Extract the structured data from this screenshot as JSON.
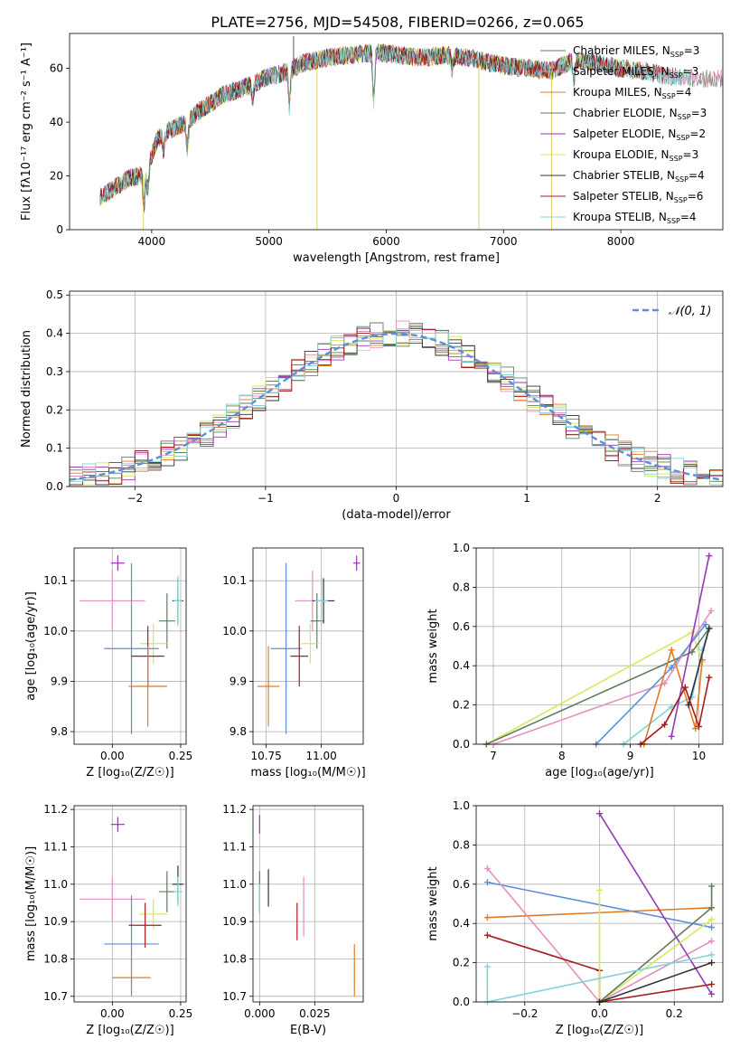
{
  "figure": {
    "title": "PLATE=2756, MJD=54508, FIBERID=0266, z=0.065"
  },
  "chart_data": [
    {
      "type": "line",
      "id": "spectrum",
      "xlabel": "wavelength [Angstrom, rest frame]",
      "ylabel": "Flux [fλ10⁻¹⁷ erg cm⁻² s⁻¹ A⁻¹]",
      "xlim": [
        3300,
        8870
      ],
      "ylim": [
        0,
        73
      ],
      "xticks": [
        4000,
        5000,
        6000,
        7000,
        8000
      ],
      "yticks": [
        0,
        20,
        40,
        60
      ],
      "grid": false,
      "legend_position": "top-right",
      "continuum": {
        "x": [
          3560,
          3700,
          3800,
          3900,
          3950,
          4050,
          4150,
          4300,
          4400,
          4600,
          4800,
          5000,
          5100,
          5300,
          5500,
          5700,
          5900,
          6100,
          6300,
          6500,
          6700,
          6900,
          7000,
          7200,
          7400,
          7600,
          7800,
          8000,
          8200,
          8400,
          8800
        ],
        "y": [
          12,
          16,
          19,
          20,
          21,
          34,
          37,
          40,
          44,
          50,
          53,
          57,
          58,
          62,
          64,
          65,
          66,
          65,
          64,
          65,
          64,
          62,
          61,
          60,
          59,
          63,
          62,
          60,
          59,
          57,
          56
        ]
      },
      "absorption_features": [
        {
          "x": 3934,
          "depth": 12
        },
        {
          "x": 3968,
          "depth": 8
        },
        {
          "x": 4101,
          "depth": 6
        },
        {
          "x": 4304,
          "depth": 10
        },
        {
          "x": 4861,
          "depth": 5
        },
        {
          "x": 5175,
          "depth": 14
        },
        {
          "x": 5893,
          "depth": 18
        },
        {
          "x": 6563,
          "depth": 5
        },
        {
          "x": 7600,
          "depth": 8
        }
      ],
      "outliers": [
        {
          "x": 3930,
          "y": 0
        },
        {
          "x": 5210,
          "y": 72
        },
        {
          "x": 5410,
          "y": 0
        },
        {
          "x": 6790,
          "y": 0
        },
        {
          "x": 7410,
          "y": 0
        }
      ],
      "series": [
        {
          "name": "Chabrier MILES, N",
          "sub": "SSP",
          "suffix": "=3",
          "color": "#607d60"
        },
        {
          "name": "Salpeter MILES, N",
          "sub": "SSP",
          "suffix": "=3",
          "color": "#e58fc0"
        },
        {
          "name": "Kroupa MILES, N",
          "sub": "SSP",
          "suffix": "=4",
          "color": "#e07b24"
        },
        {
          "name": "Chabrier ELODIE, N",
          "sub": "SSP",
          "suffix": "=3",
          "color": "#607d60"
        },
        {
          "name": "Salpeter ELODIE, N",
          "sub": "SSP",
          "suffix": "=2",
          "color": "#9a36b8"
        },
        {
          "name": "Kroupa ELODIE, N",
          "sub": "SSP",
          "suffix": "=3",
          "color": "#d6e85c"
        },
        {
          "name": "Chabrier STELIB, N",
          "sub": "SSP",
          "suffix": "=4",
          "color": "#333333"
        },
        {
          "name": "Salpeter STELIB, N",
          "sub": "SSP",
          "suffix": "=6",
          "color": "#a81c1c"
        },
        {
          "name": "Kroupa STELIB, N",
          "sub": "SSP",
          "suffix": "=4",
          "color": "#7fd3d8"
        }
      ]
    },
    {
      "type": "line",
      "id": "residuals",
      "xlabel": "(data-model)/error",
      "ylabel": "Normed distribution",
      "xlim": [
        -2.5,
        2.5
      ],
      "ylim": [
        0,
        0.51
      ],
      "xticks": [
        -2,
        -1,
        0,
        1,
        2
      ],
      "yticks": [
        0.0,
        0.1,
        0.2,
        0.3,
        0.4,
        0.5
      ],
      "grid": true,
      "legend_position": "top-right",
      "gaussian": {
        "name": "𝒩(0, 1)",
        "color": "#5b8fd8"
      },
      "bin_width": 0.1
    },
    {
      "type": "scatter",
      "id": "age-vs-Z",
      "xlabel": "Z [log₁₀(Z/Z☉)]",
      "ylabel": "age  [log₁₀(age/yr)]",
      "xlim": [
        -0.14,
        0.27
      ],
      "ylim": [
        9.775,
        10.165
      ],
      "xticks": [
        0.0,
        0.25
      ],
      "yticks": [
        9.8,
        9.9,
        10.0,
        10.1
      ],
      "grid": true,
      "points": [
        {
          "x": 0.02,
          "y": 10.135,
          "xerr": 0.025,
          "yerr": 0.015,
          "color": "#9a36b8"
        },
        {
          "x": 0.0,
          "y": 10.06,
          "xerr": 0.12,
          "yerr": 0.06,
          "color": "#e58fc0"
        },
        {
          "x": 0.2,
          "y": 10.02,
          "xerr": 0.03,
          "yerr": 0.055,
          "color": "#607d60"
        },
        {
          "x": 0.24,
          "y": 10.06,
          "xerr": 0.02,
          "yerr": 0.045,
          "color": "#333333"
        },
        {
          "x": 0.24,
          "y": 10.06,
          "xerr": 0.015,
          "yerr": 0.05,
          "color": "#7fd3d8"
        },
        {
          "x": 0.15,
          "y": 9.975,
          "xerr": 0.05,
          "yerr": 0.04,
          "color": "#d6e85c"
        },
        {
          "x": 0.07,
          "y": 9.965,
          "xerr": 0.1,
          "yerr": 0.17,
          "color": "#5b8fd8"
        },
        {
          "x": 0.13,
          "y": 9.95,
          "xerr": 0.06,
          "yerr": 0.06,
          "color": "#a81c1c"
        },
        {
          "x": 0.13,
          "y": 9.89,
          "xerr": 0.07,
          "yerr": 0.08,
          "color": "#e07b24"
        }
      ]
    },
    {
      "type": "scatter",
      "id": "age-vs-mass",
      "xlabel": "mass [log₁₀(M/M☉)]",
      "ylabel": "",
      "xlim": [
        10.69,
        11.19
      ],
      "ylim": [
        9.775,
        10.165
      ],
      "xticks": [
        10.75,
        11.0
      ],
      "yticks": [
        9.8,
        9.9,
        10.0,
        10.1
      ],
      "grid": true,
      "points": [
        {
          "x": 11.16,
          "y": 10.135,
          "xerr": 0.015,
          "yerr": 0.015,
          "color": "#9a36b8"
        },
        {
          "x": 10.96,
          "y": 10.06,
          "xerr": 0.08,
          "yerr": 0.06,
          "color": "#e58fc0"
        },
        {
          "x": 10.98,
          "y": 10.02,
          "xerr": 0.03,
          "yerr": 0.055,
          "color": "#607d60"
        },
        {
          "x": 11.01,
          "y": 10.06,
          "xerr": 0.05,
          "yerr": 0.045,
          "color": "#333333"
        },
        {
          "x": 11.0,
          "y": 10.06,
          "xerr": 0.03,
          "yerr": 0.05,
          "color": "#7fd3d8"
        },
        {
          "x": 10.95,
          "y": 9.975,
          "xerr": 0.04,
          "yerr": 0.04,
          "color": "#d6e85c"
        },
        {
          "x": 10.84,
          "y": 9.965,
          "xerr": 0.07,
          "yerr": 0.17,
          "color": "#5b8fd8"
        },
        {
          "x": 10.9,
          "y": 9.95,
          "xerr": 0.04,
          "yerr": 0.06,
          "color": "#a81c1c"
        },
        {
          "x": 10.76,
          "y": 9.89,
          "xerr": 0.05,
          "yerr": 0.08,
          "color": "#e07b24"
        }
      ]
    },
    {
      "type": "line",
      "id": "massweight-vs-age",
      "xlabel": "age  [log₁₀(age/yr)]",
      "ylabel": "mass weight",
      "xlim": [
        6.75,
        10.35
      ],
      "ylim": [
        0,
        1.0
      ],
      "xticks": [
        7,
        8,
        9,
        10
      ],
      "yticks": [
        0.0,
        0.2,
        0.4,
        0.6,
        0.8,
        1.0
      ],
      "grid": true,
      "series": [
        {
          "color": "#d6e85c",
          "points": [
            [
              6.9,
              0.0
            ],
            [
              9.9,
              0.57
            ],
            [
              10.05,
              0.42
            ]
          ]
        },
        {
          "color": "#607d60",
          "points": [
            [
              6.9,
              0.0
            ],
            [
              9.9,
              0.47
            ],
            [
              10.15,
              0.59
            ]
          ]
        },
        {
          "color": "#e58fc0",
          "points": [
            [
              7.0,
              0.0
            ],
            [
              9.5,
              0.31
            ],
            [
              10.18,
              0.68
            ]
          ]
        },
        {
          "color": "#5b8fd8",
          "points": [
            [
              8.5,
              0.0
            ],
            [
              9.6,
              0.39
            ],
            [
              10.1,
              0.61
            ]
          ]
        },
        {
          "color": "#7fd3d8",
          "points": [
            [
              8.9,
              0.0
            ],
            [
              9.6,
              0.19
            ],
            [
              9.9,
              0.24
            ],
            [
              10.05,
              0.48
            ],
            [
              10.15,
              0.59
            ]
          ]
        },
        {
          "color": "#e07b24",
          "points": [
            [
              9.2,
              0.0
            ],
            [
              9.6,
              0.48
            ],
            [
              9.95,
              0.08
            ],
            [
              10.05,
              0.43
            ]
          ]
        },
        {
          "color": "#9a36b8",
          "points": [
            [
              9.6,
              0.04
            ],
            [
              10.15,
              0.96
            ]
          ]
        },
        {
          "color": "#a81c1c",
          "points": [
            [
              9.15,
              0.0
            ],
            [
              9.5,
              0.1
            ],
            [
              9.8,
              0.29
            ],
            [
              10.0,
              0.09
            ],
            [
              10.15,
              0.34
            ]
          ]
        },
        {
          "color": "#333333",
          "points": [
            [
              9.85,
              0.2
            ],
            [
              10.15,
              0.59
            ]
          ]
        }
      ]
    },
    {
      "type": "scatter",
      "id": "mass-vs-Z",
      "xlabel": "Z [log₁₀(Z/Z☉)]",
      "ylabel": "mass [log₁₀(M/M☉)]",
      "xlim": [
        -0.14,
        0.27
      ],
      "ylim": [
        10.685,
        11.21
      ],
      "xticks": [
        0.0,
        0.25
      ],
      "yticks": [
        10.7,
        10.8,
        10.9,
        11.0,
        11.1,
        11.2
      ],
      "grid": true,
      "points": [
        {
          "x": 0.02,
          "y": 11.16,
          "xerr": 0.025,
          "yerr": 0.02,
          "color": "#9a36b8"
        },
        {
          "x": 0.0,
          "y": 10.96,
          "xerr": 0.12,
          "yerr": 0.06,
          "color": "#e58fc0"
        },
        {
          "x": 0.2,
          "y": 10.98,
          "xerr": 0.03,
          "yerr": 0.055,
          "color": "#607d60"
        },
        {
          "x": 0.24,
          "y": 11.0,
          "xerr": 0.02,
          "yerr": 0.05,
          "color": "#333333"
        },
        {
          "x": 0.24,
          "y": 10.98,
          "xerr": 0.015,
          "yerr": 0.04,
          "color": "#7fd3d8"
        },
        {
          "x": 0.15,
          "y": 10.92,
          "xerr": 0.05,
          "yerr": 0.04,
          "color": "#d6e85c"
        },
        {
          "x": 0.07,
          "y": 10.84,
          "xerr": 0.1,
          "yerr": 0.13,
          "color": "#5b8fd8"
        },
        {
          "x": 0.12,
          "y": 10.89,
          "xerr": 0.06,
          "yerr": 0.06,
          "color": "#a81c1c"
        },
        {
          "x": 0.07,
          "y": 10.75,
          "xerr": 0.07,
          "yerr": 0.05,
          "color": "#e07b24"
        }
      ]
    },
    {
      "type": "scatter",
      "id": "mass-vs-ebv",
      "xlabel": "E(B-V)",
      "ylabel": "",
      "xlim": [
        -0.003,
        0.047
      ],
      "ylim": [
        10.685,
        11.21
      ],
      "xticks": [
        0.0,
        0.025
      ],
      "yticks": [
        10.7,
        10.8,
        10.9,
        11.0,
        11.1,
        11.2
      ],
      "grid": true,
      "points": [
        {
          "x": 0.0,
          "y": 11.16,
          "xerr": 0.0,
          "yerr": 0.025,
          "color": "#9a36b8"
        },
        {
          "x": 0.0,
          "y": 10.98,
          "xerr": 0.0,
          "yerr": 0.055,
          "color": "#607d60"
        },
        {
          "x": 0.0,
          "y": 10.96,
          "xerr": 0.0,
          "yerr": 0.04,
          "color": "#7fd3d8"
        },
        {
          "x": 0.004,
          "y": 10.99,
          "xerr": 0.0,
          "yerr": 0.05,
          "color": "#333333"
        },
        {
          "x": 0.02,
          "y": 10.94,
          "xerr": 0.0,
          "yerr": 0.08,
          "color": "#e58fc0"
        },
        {
          "x": 0.017,
          "y": 10.9,
          "xerr": 0.0,
          "yerr": 0.05,
          "color": "#a81c1c"
        },
        {
          "x": 0.043,
          "y": 10.77,
          "xerr": 0.0,
          "yerr": 0.07,
          "color": "#e07b24"
        }
      ]
    },
    {
      "type": "line",
      "id": "massweight-vs-Z",
      "xlabel": "Z [log₁₀(Z/Z☉)]",
      "ylabel": "mass weight",
      "xlim": [
        -0.33,
        0.33
      ],
      "ylim": [
        0,
        1.0
      ],
      "xticks": [
        -0.2,
        0.0,
        0.2
      ],
      "yticks": [
        0.0,
        0.2,
        0.4,
        0.6,
        0.8,
        1.0
      ],
      "grid": true,
      "series": [
        {
          "color": "#5b8fd8",
          "points": [
            [
              -0.3,
              0.61
            ],
            [
              0.3,
              0.38
            ]
          ]
        },
        {
          "color": "#e07b24",
          "points": [
            [
              -0.3,
              0.43
            ],
            [
              0.3,
              0.48
            ]
          ]
        },
        {
          "color": "#e58fc0",
          "points": [
            [
              -0.3,
              0.68
            ],
            [
              0.0,
              0.0
            ],
            [
              0.3,
              0.31
            ]
          ]
        },
        {
          "color": "#9a36b8",
          "points": [
            [
              0.0,
              0.96
            ],
            [
              0.3,
              0.04
            ]
          ]
        },
        {
          "color": "#a81c1c",
          "points": [
            [
              -0.3,
              0.34
            ],
            [
              0.0,
              0.16
            ],
            [
              0.0,
              0.0
            ],
            [
              0.3,
              0.09
            ]
          ]
        },
        {
          "color": "#d6e85c",
          "points": [
            [
              0.0,
              0.57
            ],
            [
              0.0,
              0.0
            ],
            [
              0.3,
              0.42
            ]
          ]
        },
        {
          "color": "#607d60",
          "points": [
            [
              0.0,
              0.0
            ],
            [
              0.3,
              0.48
            ],
            [
              0.3,
              0.59
            ]
          ]
        },
        {
          "color": "#7fd3d8",
          "points": [
            [
              -0.3,
              0.18
            ],
            [
              -0.3,
              0.0
            ],
            [
              0.3,
              0.24
            ]
          ]
        },
        {
          "color": "#333333",
          "points": [
            [
              0.0,
              0.0
            ],
            [
              0.3,
              0.2
            ]
          ]
        }
      ]
    }
  ]
}
